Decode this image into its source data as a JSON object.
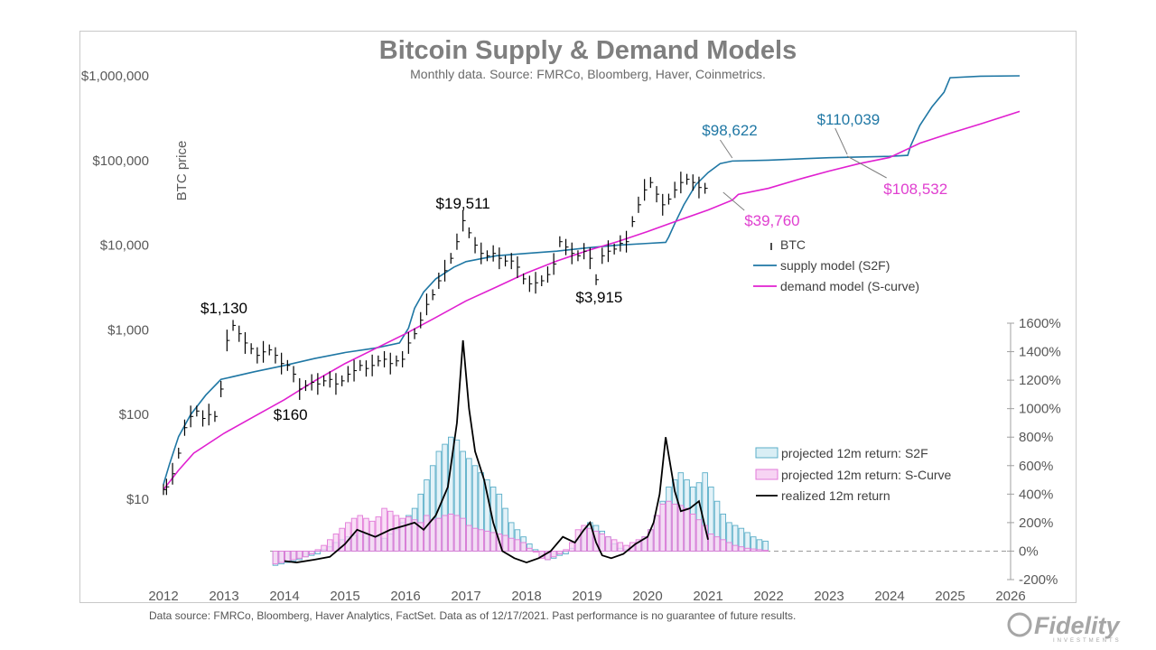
{
  "chart_data": {
    "type": "line",
    "title": "Bitcoin Supply & Demand Models",
    "subtitle": "Monthly data.  Source: FMRCo, Bloomberg, Haver, Coinmetrics.",
    "ylabel": "BTC price",
    "footnote": "Data source: FMRCo, Bloomberg, Haver Analytics, FactSet. Data as of 12/17/2021. Past performance is no guarantee of future results.",
    "brand": "Fidelity",
    "brand_sub": "INVESTMENTS",
    "y_log_scale": true,
    "ylim": [
      10,
      1000000
    ],
    "xlim": [
      2012,
      2026
    ],
    "y_ticks": [
      "$10",
      "$100",
      "$1,000",
      "$10,000",
      "$100,000",
      "$1,000,000"
    ],
    "y_tick_values": [
      10,
      100,
      1000,
      10000,
      100000,
      1000000
    ],
    "x_ticks": [
      "2012",
      "2013",
      "2014",
      "2015",
      "2016",
      "2017",
      "2018",
      "2019",
      "2020",
      "2021",
      "2022",
      "2023",
      "2024",
      "2025",
      "2026"
    ],
    "y2_ticks": [
      "-200%",
      "0%",
      "200%",
      "400%",
      "600%",
      "800%",
      "1000%",
      "1200%",
      "1400%",
      "1600%"
    ],
    "y2_tick_values": [
      -200,
      0,
      200,
      400,
      600,
      800,
      1000,
      1200,
      1400,
      1600
    ],
    "y2lim": [
      -200,
      1600
    ],
    "colors": {
      "btc": "#000000",
      "supply": "#1f77a4",
      "demand": "#e020d0",
      "s2f_bar": "#5aaec8",
      "scurve_bar": "#e27ad8",
      "realized": "#000000",
      "annot_supply": "#1f77a4",
      "annot_demand": "#e040d0"
    },
    "legend_top": [
      {
        "name": "BTC",
        "key": "btc"
      },
      {
        "name": "supply model (S2F)",
        "key": "supply"
      },
      {
        "name": "demand model (S-curve)",
        "key": "demand"
      }
    ],
    "legend_bottom": [
      {
        "name": "projected 12m return: S2F",
        "key": "s2f_bar"
      },
      {
        "name": "projected 12m return: S-Curve",
        "key": "scurve_bar"
      },
      {
        "name": "realized 12m return",
        "key": "realized"
      }
    ],
    "annotations": [
      {
        "text": "$1,130",
        "color": "#000000"
      },
      {
        "text": "$160",
        "color": "#000000"
      },
      {
        "text": "$19,511",
        "color": "#000000"
      },
      {
        "text": "$3,915",
        "color": "#000000"
      },
      {
        "text": "$98,622",
        "color": "#1f77a4"
      },
      {
        "text": "$110,039",
        "color": "#1f77a4"
      },
      {
        "text": "$39,760",
        "color": "#e040d0"
      },
      {
        "text": "$108,532",
        "color": "#e040d0"
      }
    ],
    "series": [
      {
        "key": "supply",
        "x": [
          2012.0,
          2012.1,
          2012.25,
          2012.45,
          2012.7,
          2012.95,
          2013.5,
          2014.0,
          2014.5,
          2015.0,
          2015.5,
          2015.9,
          2016.05,
          2016.15,
          2016.3,
          2016.5,
          2016.8,
          2017.0,
          2017.5,
          2018.0,
          2018.5,
          2019.0,
          2019.5,
          2020.0,
          2020.3,
          2020.35,
          2020.45,
          2020.6,
          2020.8,
          2021.0,
          2021.2,
          2021.4,
          2022.0,
          2023.0,
          2023.5,
          2024.0,
          2024.3,
          2024.35,
          2024.5,
          2024.7,
          2024.9,
          2025.0,
          2025.5,
          2026.15
        ],
        "y": [
          15,
          26,
          55,
          100,
          170,
          260,
          320,
          380,
          460,
          540,
          610,
          700,
          1050,
          1800,
          2800,
          4000,
          5500,
          6400,
          7500,
          8000,
          8500,
          9300,
          10000,
          10500,
          10800,
          12500,
          18000,
          30000,
          52000,
          72000,
          92000,
          98622,
          101000,
          108000,
          110039,
          112000,
          115000,
          150000,
          260000,
          430000,
          640000,
          950000,
          990000,
          1000000
        ]
      },
      {
        "key": "demand",
        "x": [
          2012.0,
          2012.25,
          2012.5,
          2013.0,
          2013.5,
          2014.0,
          2014.5,
          2015.0,
          2015.5,
          2016.0,
          2016.5,
          2017.0,
          2017.5,
          2018.0,
          2018.5,
          2019.0,
          2019.5,
          2020.0,
          2020.5,
          2021.0,
          2021.4,
          2021.5,
          2022.0,
          2022.5,
          2023.0,
          2023.5,
          2024.0,
          2024.5,
          2025.0,
          2025.5,
          2026.15
        ],
        "y": [
          13,
          22,
          35,
          60,
          95,
          150,
          250,
          400,
          600,
          900,
          1400,
          2200,
          3200,
          4700,
          6500,
          8600,
          11000,
          14500,
          19500,
          26000,
          34000,
          39760,
          47000,
          60000,
          75000,
          92000,
          108532,
          160000,
          210000,
          270000,
          380000
        ]
      },
      {
        "key": "btc",
        "x": [
          2012.0,
          2012.05,
          2012.15,
          2012.25,
          2012.35,
          2012.45,
          2012.55,
          2012.65,
          2012.75,
          2012.85,
          2012.95,
          2013.05,
          2013.15,
          2013.25,
          2013.35,
          2013.45,
          2013.55,
          2013.65,
          2013.75,
          2013.85,
          2013.95,
          2014.05,
          2014.15,
          2014.25,
          2014.35,
          2014.45,
          2014.55,
          2014.65,
          2014.75,
          2014.85,
          2014.95,
          2015.05,
          2015.15,
          2015.25,
          2015.35,
          2015.45,
          2015.55,
          2015.65,
          2015.75,
          2015.85,
          2015.95,
          2016.05,
          2016.15,
          2016.25,
          2016.35,
          2016.45,
          2016.55,
          2016.65,
          2016.75,
          2016.85,
          2016.95,
          2017.05,
          2017.15,
          2017.25,
          2017.35,
          2017.45,
          2017.55,
          2017.65,
          2017.75,
          2017.85,
          2017.95,
          2018.05,
          2018.15,
          2018.25,
          2018.35,
          2018.45,
          2018.55,
          2018.65,
          2018.75,
          2018.85,
          2018.95,
          2019.05,
          2019.15,
          2019.25,
          2019.35,
          2019.45,
          2019.55,
          2019.65,
          2019.75,
          2019.85,
          2019.95,
          2020.05,
          2020.15,
          2020.25,
          2020.35,
          2020.45,
          2020.55,
          2020.65,
          2020.75,
          2020.85,
          2020.95
        ],
        "y": [
          13,
          14,
          20,
          35,
          70,
          95,
          110,
          90,
          100,
          95,
          200,
          750,
          1130,
          900,
          700,
          600,
          500,
          550,
          580,
          500,
          400,
          380,
          300,
          200,
          220,
          240,
          230,
          250,
          260,
          230,
          250,
          300,
          330,
          380,
          350,
          380,
          430,
          450,
          400,
          430,
          450,
          700,
          900,
          1300,
          2000,
          2600,
          3800,
          5000,
          7000,
          11000,
          19511,
          14000,
          10000,
          8000,
          7500,
          8000,
          7000,
          6500,
          6500,
          5500,
          4000,
          3500,
          3600,
          3800,
          4500,
          6000,
          11000,
          9500,
          8000,
          7500,
          8500,
          7000,
          3915,
          7500,
          8500,
          9000,
          10500,
          11000,
          19000,
          30000,
          45000,
          55000,
          40000,
          30000,
          35000,
          45000,
          55000,
          60000,
          55000,
          48000,
          47000
        ]
      }
    ],
    "bar_x": [
      2013.85,
      2013.95,
      2014.05,
      2014.15,
      2014.25,
      2014.35,
      2014.45,
      2014.55,
      2014.65,
      2014.75,
      2014.85,
      2014.95,
      2015.05,
      2015.15,
      2015.25,
      2015.35,
      2015.45,
      2015.55,
      2015.65,
      2015.75,
      2015.85,
      2015.95,
      2016.05,
      2016.15,
      2016.25,
      2016.35,
      2016.45,
      2016.55,
      2016.65,
      2016.75,
      2016.85,
      2016.95,
      2017.05,
      2017.15,
      2017.25,
      2017.35,
      2017.45,
      2017.55,
      2017.65,
      2017.75,
      2017.85,
      2017.95,
      2018.05,
      2018.15,
      2018.25,
      2018.35,
      2018.45,
      2018.55,
      2018.65,
      2018.75,
      2018.85,
      2018.95,
      2019.05,
      2019.15,
      2019.25,
      2019.35,
      2019.45,
      2019.55,
      2019.65,
      2019.75,
      2019.85,
      2019.95,
      2020.05,
      2020.15,
      2020.25,
      2020.35,
      2020.45,
      2020.55,
      2020.65,
      2020.75,
      2020.85,
      2020.95,
      2021.05,
      2021.15,
      2021.25,
      2021.35,
      2021.45,
      2021.55,
      2021.65,
      2021.75,
      2021.85,
      2021.95
    ],
    "s2f_bar_values": [
      -100,
      -90,
      -80,
      -70,
      -60,
      -40,
      -30,
      -20,
      10,
      30,
      60,
      80,
      100,
      110,
      130,
      120,
      110,
      100,
      90,
      120,
      150,
      200,
      250,
      300,
      400,
      500,
      600,
      700,
      750,
      800,
      780,
      700,
      650,
      600,
      550,
      500,
      450,
      400,
      300,
      200,
      150,
      100,
      50,
      10,
      -40,
      -60,
      -50,
      -30,
      -20,
      20,
      80,
      150,
      200,
      180,
      140,
      100,
      50,
      20,
      10,
      30,
      60,
      100,
      150,
      250,
      350,
      450,
      500,
      550,
      500,
      450,
      480,
      550,
      450,
      350,
      260,
      200,
      180,
      160,
      130,
      100,
      80,
      70
    ],
    "scurve_bar_values": [
      -90,
      -80,
      -70,
      -60,
      -50,
      -40,
      -20,
      10,
      40,
      80,
      120,
      160,
      200,
      230,
      250,
      230,
      210,
      240,
      300,
      280,
      250,
      230,
      240,
      220,
      200,
      250,
      220,
      230,
      250,
      260,
      250,
      230,
      180,
      160,
      150,
      140,
      130,
      120,
      110,
      90,
      80,
      60,
      20,
      0,
      -50,
      -60,
      -40,
      -20,
      10,
      60,
      150,
      180,
      160,
      140,
      120,
      100,
      80,
      60,
      40,
      60,
      80,
      100,
      150,
      250,
      330,
      350,
      330,
      320,
      300,
      260,
      220,
      180,
      120,
      100,
      80,
      60,
      40,
      30,
      20,
      15,
      10,
      5
    ],
    "realized_x": [
      2014.0,
      2014.2,
      2014.5,
      2014.75,
      2015.0,
      2015.2,
      2015.5,
      2015.75,
      2016.0,
      2016.15,
      2016.3,
      2016.5,
      2016.7,
      2016.85,
      2016.95,
      2017.05,
      2017.15,
      2017.3,
      2017.45,
      2017.6,
      2017.8,
      2018.0,
      2018.2,
      2018.4,
      2018.6,
      2018.8,
      2018.95,
      2019.05,
      2019.15,
      2019.25,
      2019.4,
      2019.6,
      2019.8,
      2020.0,
      2020.1,
      2020.2,
      2020.3,
      2020.45,
      2020.55,
      2020.7,
      2020.85,
      2021.0
    ],
    "realized_values": [
      -70,
      -80,
      -60,
      -40,
      50,
      150,
      100,
      150,
      180,
      200,
      150,
      250,
      450,
      900,
      1480,
      1000,
      700,
      500,
      200,
      0,
      -50,
      -80,
      -50,
      0,
      100,
      60,
      150,
      200,
      60,
      -30,
      -50,
      -20,
      50,
      100,
      200,
      400,
      800,
      420,
      280,
      300,
      350,
      80
    ]
  }
}
